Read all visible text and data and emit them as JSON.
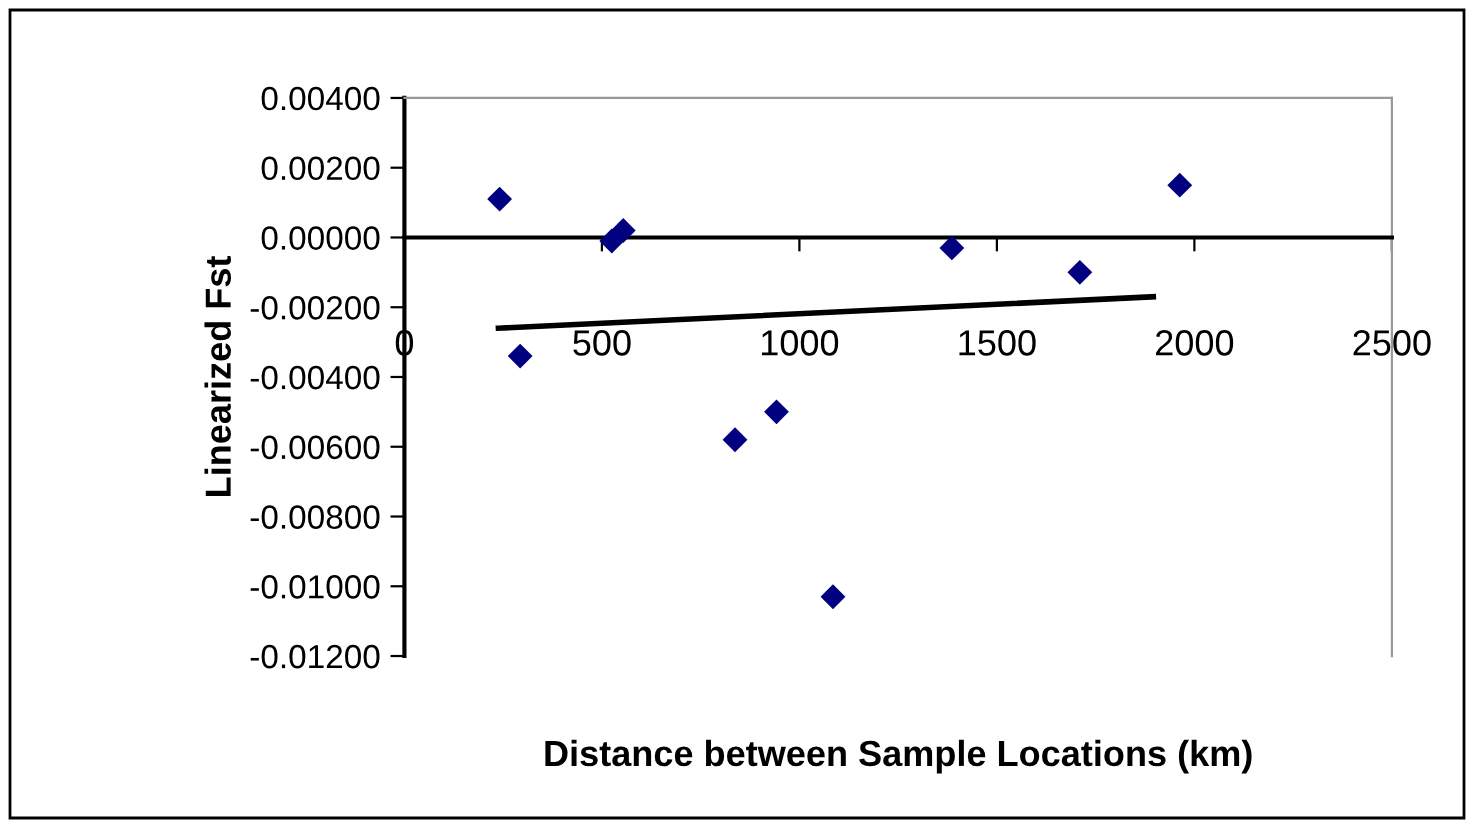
{
  "chart_data": {
    "type": "scatter",
    "xlabel": "Distance between Sample Locations (km)",
    "ylabel": "Linearized Fst",
    "xlim": [
      0,
      2500
    ],
    "xticks": [
      0,
      500,
      1000,
      1500,
      2000,
      2500
    ],
    "ylim": [
      -0.012,
      0.004
    ],
    "yticks": [
      {
        "value": 0.004,
        "label": "0.00400"
      },
      {
        "value": 0.002,
        "label": "0.00200"
      },
      {
        "value": 0,
        "label": "0.00000"
      },
      {
        "value": -0.002,
        "label": "-0.00200"
      },
      {
        "value": -0.004,
        "label": "-0.00400"
      },
      {
        "value": -0.006,
        "label": "-0.00600"
      },
      {
        "value": -0.008,
        "label": "-0.00800"
      },
      {
        "value": -0.01,
        "label": "-0.01000"
      },
      {
        "value": -0.012,
        "label": "-0.01200"
      }
    ],
    "grid": false,
    "legend": false,
    "series": [
      {
        "color": "#000080",
        "marker": "diamond",
        "x": [
          241,
          293,
          525,
          554,
          837,
          942,
          1085,
          1386,
          1710,
          1963
        ],
        "values": [
          0.0011,
          -0.0034,
          -0.0001,
          0.0002,
          -0.0058,
          -0.005,
          -0.0103,
          -0.0003,
          -0.001,
          0.0015
        ]
      },
      {
        "type": "line",
        "color": "#000000",
        "line_style": "solid",
        "marker": "none",
        "x": [
          238,
          1896
        ],
        "values": [
          -0.0026,
          -0.0017
        ]
      }
    ]
  }
}
